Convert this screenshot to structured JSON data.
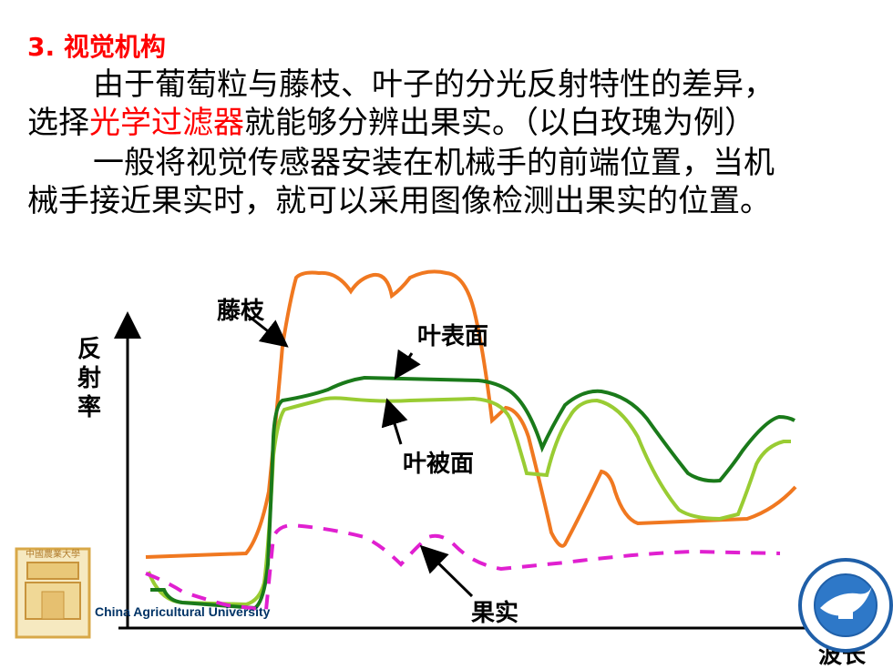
{
  "title": "3. 视觉机构",
  "paragraph1": {
    "line1": "由于葡萄粒与藤枝、叶子的分光反射特性的差异，",
    "line2_before": "选择",
    "line2_highlight": "光学过滤器",
    "line2_after": "就能够分辨出果实。（以白玫瑰为例）"
  },
  "paragraph2": {
    "line1": "一般将视觉传感器安装在机械手的前端位置，当机",
    "line2": "械手接近果实时，就可以采用图像检测出果实的位置。"
  },
  "chart": {
    "ylabel": "反射率",
    "xlabel": "波长",
    "labels": {
      "vine": "藤枝",
      "leaf_front": "叶表面",
      "leaf_back": "叶被面",
      "fruit": "果实"
    }
  },
  "logo_left_text": "China Agricultural University",
  "colors": {
    "title": "#ff0000",
    "vine": "#f07820",
    "leaf_front": "#1a7a1a",
    "leaf_back": "#99cc33",
    "fruit": "#e020d0",
    "highlight": "#ff0000"
  }
}
